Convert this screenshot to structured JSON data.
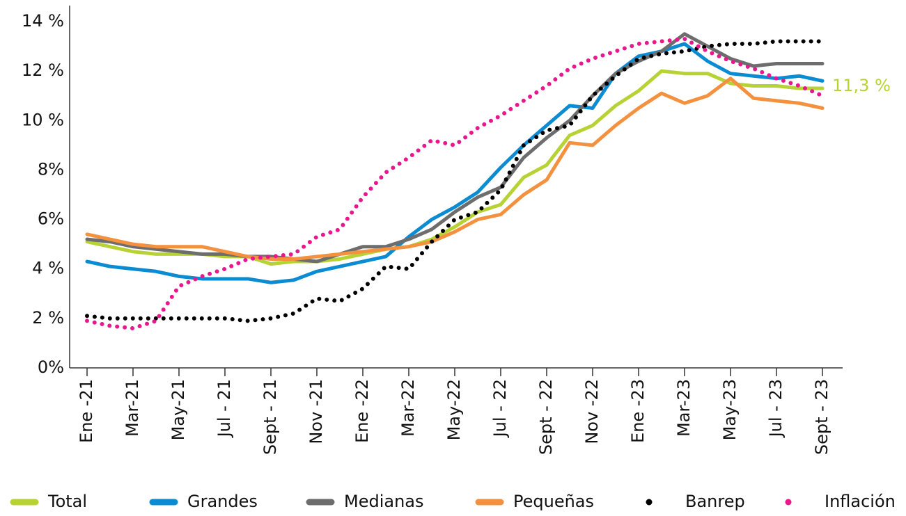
{
  "chart_data": {
    "type": "line",
    "categories": [
      "Ene -21",
      null,
      "Mar-21",
      null,
      "May-21",
      null,
      "Jul - 21",
      null,
      "Sept - 21",
      null,
      "Nov -21",
      null,
      "Ene -22",
      null,
      "Mar-22",
      null,
      "May-22",
      null,
      "Jul - 22",
      null,
      "Sept - 22",
      null,
      "Nov -22",
      null,
      "Ene -23",
      null,
      "Mar-23",
      null,
      "May-23",
      null,
      "Jul - 23",
      null,
      "Sept - 23"
    ],
    "series": [
      {
        "name": "Total",
        "color": "#b7d234",
        "style": "solid",
        "values": [
          5.1,
          4.9,
          4.7,
          4.6,
          4.6,
          4.6,
          4.5,
          4.5,
          4.2,
          4.3,
          4.3,
          4.4,
          4.6,
          4.8,
          4.9,
          5.2,
          5.7,
          6.3,
          6.6,
          7.7,
          8.2,
          9.4,
          9.8,
          10.6,
          11.2,
          12.0,
          11.9,
          11.9,
          11.5,
          11.4,
          11.4,
          11.3,
          11.3
        ]
      },
      {
        "name": "Grandes",
        "color": "#0a8bd2",
        "style": "solid",
        "values": [
          4.3,
          4.1,
          4.0,
          3.9,
          3.7,
          3.6,
          3.6,
          3.6,
          3.45,
          3.55,
          3.9,
          4.1,
          4.3,
          4.5,
          5.3,
          6.0,
          6.5,
          7.1,
          8.1,
          9.0,
          9.8,
          10.6,
          10.5,
          11.9,
          12.6,
          12.8,
          13.1,
          12.4,
          11.9,
          11.8,
          11.7,
          11.8,
          11.6
        ]
      },
      {
        "name": "Medianas",
        "color": "#6d6d6d",
        "style": "solid",
        "values": [
          5.2,
          5.1,
          4.9,
          4.8,
          4.7,
          4.6,
          4.6,
          4.5,
          4.5,
          4.4,
          4.3,
          4.6,
          4.9,
          4.9,
          5.2,
          5.6,
          6.3,
          6.9,
          7.3,
          8.5,
          9.3,
          10.0,
          11.0,
          11.9,
          12.4,
          12.8,
          13.5,
          13.0,
          12.5,
          12.2,
          12.3,
          12.3,
          12.3
        ]
      },
      {
        "name": "Pequeñas",
        "color": "#f4913e",
        "style": "solid",
        "values": [
          5.4,
          5.2,
          5.0,
          4.9,
          4.9,
          4.9,
          4.7,
          4.5,
          4.4,
          4.4,
          4.5,
          4.6,
          4.7,
          4.8,
          4.9,
          5.1,
          5.5,
          6.0,
          6.2,
          7.0,
          7.6,
          9.1,
          9.0,
          9.8,
          10.5,
          11.1,
          10.7,
          11.0,
          11.7,
          10.9,
          10.8,
          10.7,
          10.5
        ]
      },
      {
        "name": "Banrep",
        "color": "#000000",
        "style": "dotted",
        "values": [
          2.1,
          2.0,
          2.0,
          2.0,
          2.0,
          2.0,
          2.0,
          1.9,
          2.0,
          2.2,
          2.8,
          2.7,
          3.2,
          4.1,
          4.0,
          5.1,
          6.0,
          6.3,
          7.2,
          9.0,
          9.6,
          9.8,
          11.0,
          11.8,
          12.5,
          12.7,
          12.8,
          13.0,
          13.1,
          13.1,
          13.2,
          13.2,
          13.2
        ]
      },
      {
        "name": "Inflación",
        "color": "#e8178d",
        "style": "dotted",
        "values": [
          1.9,
          1.7,
          1.6,
          1.9,
          3.3,
          3.7,
          4.0,
          4.4,
          4.5,
          4.6,
          5.3,
          5.6,
          6.9,
          7.9,
          8.5,
          9.2,
          9.0,
          9.7,
          10.2,
          10.8,
          11.4,
          12.1,
          12.5,
          12.8,
          13.1,
          13.2,
          13.3,
          12.8,
          12.4,
          12.1,
          11.7,
          11.4,
          11.0
        ]
      }
    ],
    "annotation": "11,3 %",
    "ylim": [
      0,
      14
    ],
    "yticks": [
      {
        "value": 0,
        "label": "0%"
      },
      {
        "value": 2,
        "label": "2 %"
      },
      {
        "value": 4,
        "label": "4 %"
      },
      {
        "value": 6,
        "label": "6%"
      },
      {
        "value": 8,
        "label": "8%"
      },
      {
        "value": 10,
        "label": "10 %"
      },
      {
        "value": 12,
        "label": "12 %"
      },
      {
        "value": 14,
        "label": "14 %"
      }
    ],
    "grid": false,
    "legend": "bottom"
  }
}
